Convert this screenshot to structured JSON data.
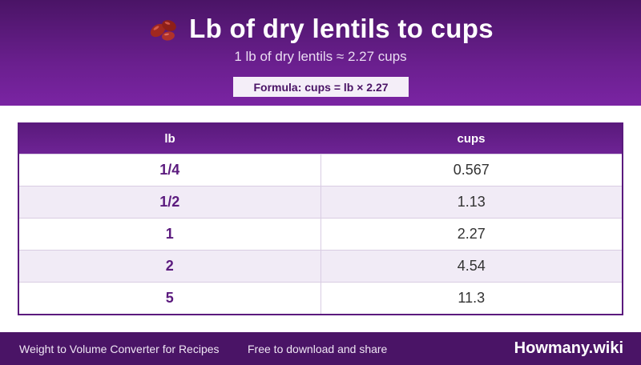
{
  "header": {
    "icon": "beans-icon",
    "title": "Lb of dry lentils to cups",
    "subtitle": "1 lb of dry lentils ≈ 2.27 cups",
    "formula": "Formula: cups = lb × 2.27"
  },
  "table": {
    "columns": [
      "lb",
      "cups"
    ],
    "rows": [
      {
        "lb": "1/4",
        "cups": "0.567"
      },
      {
        "lb": "1/2",
        "cups": "1.13"
      },
      {
        "lb": "1",
        "cups": "2.27"
      },
      {
        "lb": "2",
        "cups": "4.54"
      },
      {
        "lb": "5",
        "cups": "11.3"
      }
    ]
  },
  "footer": {
    "left": "Weight to Volume Converter for Recipes",
    "middle": "Free to download and share",
    "brand": "Howmany.wiki"
  },
  "colors": {
    "header_dark": "#4a1466",
    "header_light": "#7a24a3",
    "accent": "#5b1a7e",
    "row_alt": "#f1ebf6"
  }
}
